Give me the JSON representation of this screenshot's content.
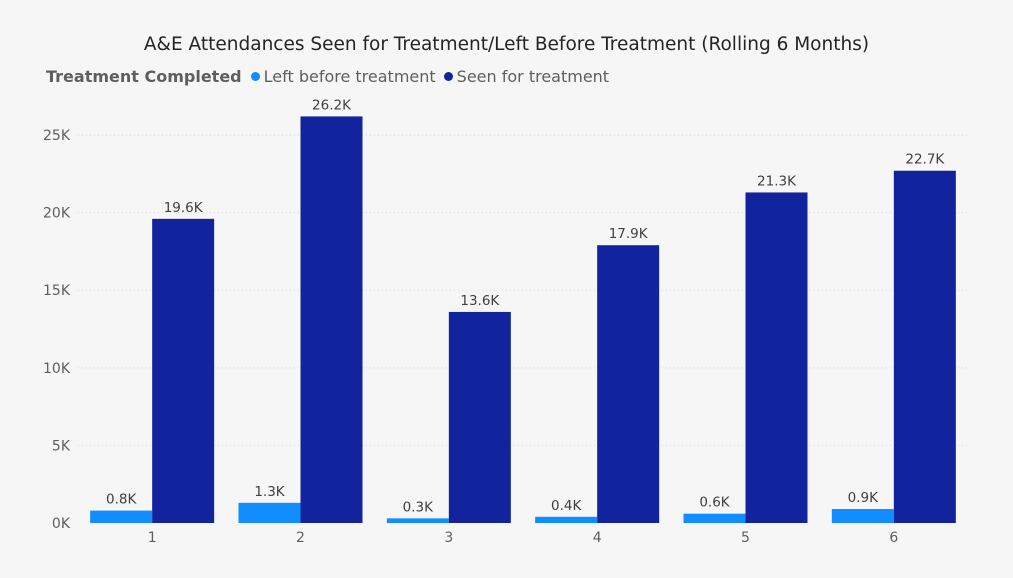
{
  "chart_data": {
    "type": "bar",
    "title": "A&E Attendances Seen for Treatment/Left Before Treatment (Rolling 6 Months)",
    "legend_title": "Treatment Completed",
    "legend_position": "top-left",
    "categories": [
      "1",
      "2",
      "3",
      "4",
      "5",
      "6"
    ],
    "series": [
      {
        "name": "Left before treatment",
        "color": "#118dff",
        "values": [
          800,
          1300,
          300,
          400,
          600,
          900
        ],
        "labels": [
          "0.8K",
          "1.3K",
          "0.3K",
          "0.4K",
          "0.6K",
          "0.9K"
        ]
      },
      {
        "name": "Seen for treatment",
        "color": "#12239e",
        "values": [
          19600,
          26200,
          13600,
          17900,
          21300,
          22700
        ],
        "labels": [
          "19.6K",
          "26.2K",
          "13.6K",
          "17.9K",
          "21.3K",
          "22.7K"
        ]
      }
    ],
    "yticks": [
      0,
      5000,
      10000,
      15000,
      20000,
      25000
    ],
    "ytick_labels": [
      "0K",
      "5K",
      "10K",
      "15K",
      "20K",
      "25K"
    ],
    "ylim": [
      0,
      27000
    ],
    "grid": true
  }
}
